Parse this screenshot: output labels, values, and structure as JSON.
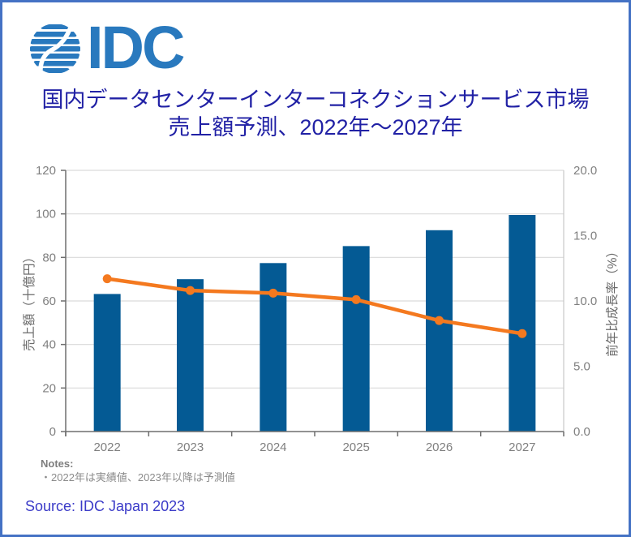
{
  "logo": {
    "text": "IDC"
  },
  "title": {
    "line1": "国内データセンターインターコネクションサービス市場",
    "line2": "売上額予測、2022年～2027年"
  },
  "notes": {
    "heading": "Notes:",
    "line": "・2022年は実績値、2023年以降は予測値"
  },
  "source": {
    "text": "Source: IDC Japan 2023"
  },
  "colors": {
    "frame_border": "#4472C4",
    "logo_blue": "#2979BE",
    "title_blue": "#2121A5",
    "bar_blue": "#045A94",
    "line_orange": "#F4791F",
    "gridline": "#D9D9D9",
    "axis_line": "#6E6E6E",
    "plot_right_border": "#C9C9C9",
    "tick_label": "#7F7F7F",
    "axis_title": "#6B6B6B",
    "source_blue": "#3B3BC8"
  },
  "chart_data": {
    "type": "bar",
    "subtype": "combo-bar-line",
    "title": "国内データセンターインターコネクションサービス市場 売上額予測、2022年～2027年",
    "categories": [
      "2022",
      "2023",
      "2024",
      "2025",
      "2026",
      "2027"
    ],
    "series": [
      {
        "name": "売上額（十億円）",
        "type": "bar",
        "axis": "left",
        "color": "#045A94",
        "values": [
          63.2,
          70.0,
          77.4,
          85.2,
          92.5,
          99.5
        ]
      },
      {
        "name": "前年比成長率（%）",
        "type": "line",
        "axis": "right",
        "color": "#F4791F",
        "values": [
          11.7,
          10.8,
          10.6,
          10.1,
          8.5,
          7.5
        ]
      }
    ],
    "left_axis": {
      "label": "売上額（十億円）",
      "min": 0,
      "max": 120,
      "step": 20,
      "ticks": [
        "0",
        "20",
        "40",
        "60",
        "80",
        "100",
        "120"
      ]
    },
    "right_axis": {
      "label": "前年比成長率（%）",
      "min": 0,
      "max": 20,
      "step": 5,
      "ticks": [
        "0.0",
        "5.0",
        "10.0",
        "15.0",
        "20.0"
      ]
    },
    "xlabel": "",
    "grid": true,
    "legend_position": "none"
  }
}
